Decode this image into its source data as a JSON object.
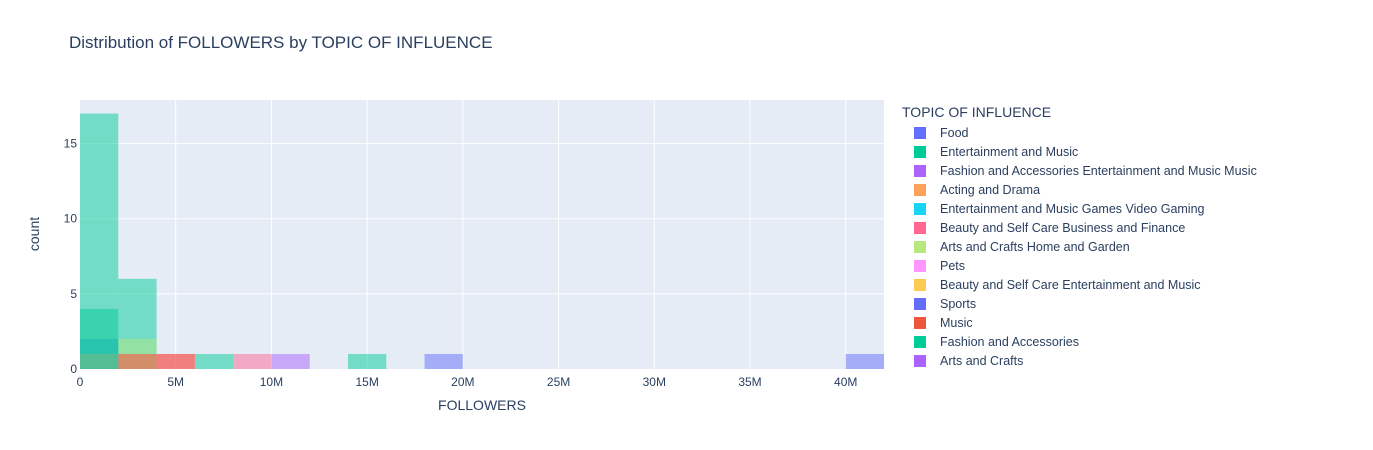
{
  "chart_data": {
    "type": "bar",
    "title": "Distribution of FOLLOWERS by TOPIC OF INFLUENCE",
    "xlabel": "FOLLOWERS",
    "ylabel": "count",
    "xlim": [
      0,
      42000000
    ],
    "ylim": [
      0,
      17.9
    ],
    "barmode": "overlay",
    "bin_size": 2000000,
    "grid": true,
    "legend_position": "right",
    "legend_title": "TOPIC OF INFLUENCE",
    "x_ticks": [
      {
        "value": 0,
        "label": "0"
      },
      {
        "value": 5000000,
        "label": "5M"
      },
      {
        "value": 10000000,
        "label": "10M"
      },
      {
        "value": 15000000,
        "label": "15M"
      },
      {
        "value": 20000000,
        "label": "20M"
      },
      {
        "value": 25000000,
        "label": "25M"
      },
      {
        "value": 30000000,
        "label": "30M"
      },
      {
        "value": 35000000,
        "label": "35M"
      },
      {
        "value": 40000000,
        "label": "40M"
      }
    ],
    "y_ticks": [
      {
        "value": 0,
        "label": "0"
      },
      {
        "value": 5,
        "label": "5"
      },
      {
        "value": 10,
        "label": "10"
      },
      {
        "value": 15,
        "label": "15"
      }
    ],
    "series": [
      {
        "name": "Food",
        "color": "#636efa",
        "bins": [
          {
            "x0": 0,
            "x1": 2000000,
            "count": 2
          },
          {
            "x0": 18000000,
            "x1": 20000000,
            "count": 1
          },
          {
            "x0": 40000000,
            "x1": 42000000,
            "count": 1
          }
        ]
      },
      {
        "name": "Entertainment and Music",
        "color": "#00cc96",
        "bins": [
          {
            "x0": 0,
            "x1": 2000000,
            "count": 17
          },
          {
            "x0": 2000000,
            "x1": 4000000,
            "count": 6
          },
          {
            "x0": 6000000,
            "x1": 8000000,
            "count": 1
          },
          {
            "x0": 14000000,
            "x1": 16000000,
            "count": 1
          }
        ]
      },
      {
        "name": "Fashion and Accessories Entertainment and Music Music",
        "color": "#ab63fa",
        "bins": [
          {
            "x0": 10000000,
            "x1": 12000000,
            "count": 1
          }
        ]
      },
      {
        "name": "Acting and Drama",
        "color": "#ffa15a",
        "bins": [
          {
            "x0": 0,
            "x1": 2000000,
            "count": 1
          }
        ]
      },
      {
        "name": "Entertainment and Music Games Video Gaming",
        "color": "#19d3f3",
        "bins": []
      },
      {
        "name": "Beauty and Self Care Business and Finance",
        "color": "#ff6692",
        "bins": [
          {
            "x0": 2000000,
            "x1": 4000000,
            "count": 1
          },
          {
            "x0": 4000000,
            "x1": 6000000,
            "count": 1
          },
          {
            "x0": 8000000,
            "x1": 10000000,
            "count": 1
          }
        ]
      },
      {
        "name": "Arts and Crafts Home and Garden",
        "color": "#b6e880",
        "bins": [
          {
            "x0": 2000000,
            "x1": 4000000,
            "count": 2
          }
        ]
      },
      {
        "name": "Pets",
        "color": "#ff97ff",
        "bins": []
      },
      {
        "name": "Beauty and Self Care Entertainment and Music",
        "color": "#fecb52",
        "bins": []
      },
      {
        "name": "Sports",
        "color": "#636efa",
        "bins": []
      },
      {
        "name": "Music",
        "color": "#ef553b",
        "bins": [
          {
            "x0": 2000000,
            "x1": 4000000,
            "count": 1
          },
          {
            "x0": 4000000,
            "x1": 6000000,
            "count": 1
          }
        ]
      },
      {
        "name": "Fashion and Accessories",
        "color": "#00cc96",
        "bins": [
          {
            "x0": 0,
            "x1": 2000000,
            "count": 4
          }
        ]
      },
      {
        "name": "Arts and Crafts",
        "color": "#ab63fa",
        "bins": []
      }
    ]
  }
}
